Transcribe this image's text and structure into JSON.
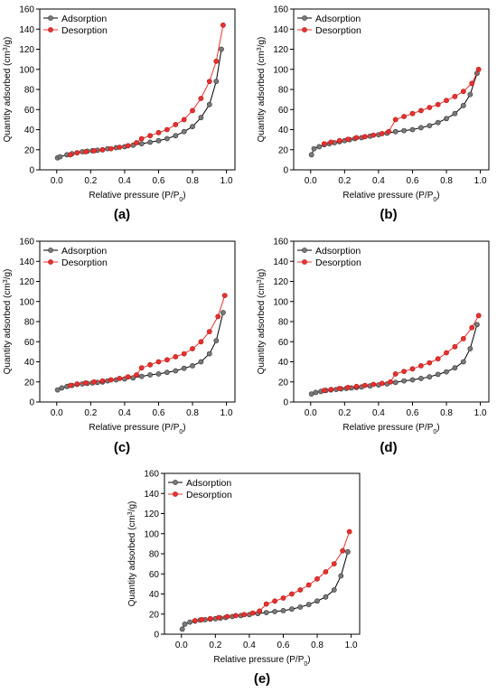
{
  "figure": {
    "panel_labels": [
      "(a)",
      "(b)",
      "(c)",
      "(d)",
      "(e)"
    ]
  },
  "chart_data": [
    {
      "type": "line",
      "panel": "(a)",
      "xlabel": "Relative pressure (P/P0)",
      "ylabel": "Quantity adsorbed (cm3/g)",
      "xlim": [
        -0.1,
        1.05
      ],
      "ylim": [
        0,
        160
      ],
      "xticks": [
        0.0,
        0.2,
        0.4,
        0.6,
        0.8,
        1.0
      ],
      "yticks": [
        0,
        20,
        40,
        60,
        80,
        100,
        120,
        140,
        160
      ],
      "grid": false,
      "legend": "top-left",
      "series": [
        {
          "name": "Adsorption",
          "color": "#000000",
          "marker_color": "#7a7a7a",
          "x": [
            0.005,
            0.02,
            0.06,
            0.09,
            0.12,
            0.15,
            0.18,
            0.21,
            0.24,
            0.27,
            0.3,
            0.35,
            0.4,
            0.45,
            0.5,
            0.55,
            0.6,
            0.65,
            0.7,
            0.75,
            0.8,
            0.85,
            0.9,
            0.94,
            0.97
          ],
          "y": [
            12,
            13,
            15,
            16,
            17,
            18,
            18.5,
            19,
            19.5,
            20,
            21,
            22,
            23,
            24.5,
            26,
            27.5,
            29,
            31,
            34,
            38,
            43,
            52,
            65,
            88,
            120
          ]
        },
        {
          "name": "Desorption",
          "color": "#e8312f",
          "marker_color": "#e8312f",
          "x": [
            0.98,
            0.94,
            0.9,
            0.85,
            0.8,
            0.75,
            0.7,
            0.65,
            0.6,
            0.55,
            0.5,
            0.47,
            0.42,
            0.37,
            0.32,
            0.27,
            0.22,
            0.17,
            0.12,
            0.08
          ],
          "y": [
            144,
            108,
            88,
            71,
            59,
            50,
            45,
            40,
            37,
            34,
            31,
            27,
            24,
            22.5,
            21,
            20,
            19,
            18,
            17,
            15
          ]
        }
      ]
    },
    {
      "type": "line",
      "panel": "(b)",
      "xlabel": "Relative pressure (P/P0)",
      "ylabel": "Quantity adsorbed (cm3/g)",
      "xlim": [
        -0.1,
        1.05
      ],
      "ylim": [
        0,
        160
      ],
      "xticks": [
        0.0,
        0.2,
        0.4,
        0.6,
        0.8,
        1.0
      ],
      "yticks": [
        0,
        20,
        40,
        60,
        80,
        100,
        120,
        140,
        160
      ],
      "grid": false,
      "legend": "top-left",
      "series": [
        {
          "name": "Adsorption",
          "color": "#000000",
          "marker_color": "#7a7a7a",
          "x": [
            0.005,
            0.02,
            0.05,
            0.08,
            0.11,
            0.14,
            0.17,
            0.2,
            0.23,
            0.26,
            0.3,
            0.35,
            0.4,
            0.45,
            0.5,
            0.55,
            0.6,
            0.65,
            0.7,
            0.75,
            0.8,
            0.85,
            0.9,
            0.94,
            0.98
          ],
          "y": [
            15,
            21,
            23,
            25,
            26,
            27,
            28,
            29,
            30,
            31,
            32,
            33.5,
            35,
            36.5,
            38,
            39,
            40,
            42,
            44,
            47,
            51,
            56,
            64,
            75,
            96
          ]
        },
        {
          "name": "Desorption",
          "color": "#e8312f",
          "marker_color": "#e8312f",
          "x": [
            0.99,
            0.95,
            0.9,
            0.85,
            0.8,
            0.75,
            0.7,
            0.65,
            0.6,
            0.55,
            0.5,
            0.46,
            0.42,
            0.37,
            0.32,
            0.27,
            0.22,
            0.17,
            0.12,
            0.08
          ],
          "y": [
            100,
            86,
            78,
            73,
            69,
            65,
            62,
            59,
            56,
            53,
            50,
            38,
            36,
            34.5,
            33,
            32,
            30.5,
            29,
            27.5,
            26
          ]
        }
      ]
    },
    {
      "type": "line",
      "panel": "(c)",
      "xlabel": "Relative pressure (P/P0)",
      "ylabel": "Quantity adsorbed (cm3/g)",
      "xlim": [
        -0.1,
        1.05
      ],
      "ylim": [
        0,
        160
      ],
      "xticks": [
        0.0,
        0.2,
        0.4,
        0.6,
        0.8,
        1.0
      ],
      "yticks": [
        0,
        20,
        40,
        60,
        80,
        100,
        120,
        140,
        160
      ],
      "grid": false,
      "legend": "top-left",
      "series": [
        {
          "name": "Adsorption",
          "color": "#000000",
          "marker_color": "#7a7a7a",
          "x": [
            0.005,
            0.03,
            0.06,
            0.09,
            0.12,
            0.15,
            0.18,
            0.21,
            0.24,
            0.27,
            0.3,
            0.35,
            0.4,
            0.45,
            0.5,
            0.55,
            0.6,
            0.65,
            0.7,
            0.75,
            0.8,
            0.85,
            0.9,
            0.94,
            0.98
          ],
          "y": [
            12,
            14,
            15.5,
            16.5,
            17.5,
            18,
            18.5,
            19,
            19.5,
            20,
            21,
            22,
            23,
            24,
            25.5,
            27,
            28,
            29.5,
            31,
            33.5,
            36,
            40,
            48,
            61,
            89
          ]
        },
        {
          "name": "Desorption",
          "color": "#e8312f",
          "marker_color": "#e8312f",
          "x": [
            0.99,
            0.95,
            0.9,
            0.85,
            0.8,
            0.75,
            0.7,
            0.65,
            0.6,
            0.55,
            0.5,
            0.47,
            0.42,
            0.37,
            0.32,
            0.27,
            0.22,
            0.17,
            0.12,
            0.08
          ],
          "y": [
            106,
            85,
            70,
            60,
            53,
            48,
            45,
            42,
            40,
            37,
            34,
            27,
            25,
            23.5,
            22,
            21,
            20,
            19,
            18,
            16.5
          ]
        }
      ]
    },
    {
      "type": "line",
      "panel": "(d)",
      "xlabel": "Relative pressure (P/P0)",
      "ylabel": "Quantity adsorbed (cm3/g)",
      "xlim": [
        -0.1,
        1.05
      ],
      "ylim": [
        0,
        160
      ],
      "xticks": [
        0.0,
        0.2,
        0.4,
        0.6,
        0.8,
        1.0
      ],
      "yticks": [
        0,
        20,
        40,
        60,
        80,
        100,
        120,
        140,
        160
      ],
      "grid": false,
      "legend": "top-left",
      "series": [
        {
          "name": "Adsorption",
          "color": "#000000",
          "marker_color": "#7a7a7a",
          "x": [
            0.005,
            0.03,
            0.06,
            0.09,
            0.12,
            0.15,
            0.18,
            0.21,
            0.24,
            0.27,
            0.3,
            0.35,
            0.4,
            0.45,
            0.5,
            0.55,
            0.6,
            0.65,
            0.7,
            0.75,
            0.8,
            0.85,
            0.9,
            0.94,
            0.98
          ],
          "y": [
            8,
            9.5,
            10.5,
            11.5,
            12,
            12.5,
            13,
            13.5,
            14,
            14.5,
            15,
            16,
            17,
            18,
            19.5,
            21,
            22,
            23.5,
            25,
            27.5,
            30,
            34,
            40,
            53,
            77
          ]
        },
        {
          "name": "Desorption",
          "color": "#e8312f",
          "marker_color": "#e8312f",
          "x": [
            0.99,
            0.95,
            0.9,
            0.85,
            0.8,
            0.75,
            0.7,
            0.65,
            0.6,
            0.55,
            0.5,
            0.47,
            0.42,
            0.37,
            0.32,
            0.27,
            0.22,
            0.17,
            0.12,
            0.08
          ],
          "y": [
            86,
            74,
            63,
            55,
            49,
            43,
            39,
            36,
            33,
            30.5,
            28,
            20,
            18.5,
            17.5,
            16.5,
            15.5,
            14.5,
            13.5,
            12.5,
            11.5
          ]
        }
      ]
    },
    {
      "type": "line",
      "panel": "(e)",
      "xlabel": "Relative pressure (P/P0)",
      "ylabel": "Quantity adsorbed (cm3/g)",
      "xlim": [
        -0.1,
        1.05
      ],
      "ylim": [
        0,
        160
      ],
      "xticks": [
        0.0,
        0.2,
        0.4,
        0.6,
        0.8,
        1.0
      ],
      "yticks": [
        0,
        20,
        40,
        60,
        80,
        100,
        120,
        140,
        160
      ],
      "grid": false,
      "legend": "top-left",
      "series": [
        {
          "name": "Adsorption",
          "color": "#000000",
          "marker_color": "#7a7a7a",
          "x": [
            0.005,
            0.02,
            0.05,
            0.08,
            0.11,
            0.14,
            0.17,
            0.2,
            0.23,
            0.26,
            0.3,
            0.35,
            0.4,
            0.45,
            0.5,
            0.55,
            0.6,
            0.65,
            0.7,
            0.75,
            0.8,
            0.85,
            0.9,
            0.94,
            0.98
          ],
          "y": [
            5,
            10,
            12,
            13,
            14,
            14.5,
            15,
            15.5,
            16,
            16.5,
            17.5,
            18.5,
            19.5,
            20.5,
            21.5,
            22.5,
            23.5,
            25,
            27,
            29.5,
            33,
            37,
            44,
            58,
            82
          ]
        },
        {
          "name": "Desorption",
          "color": "#e8312f",
          "marker_color": "#e8312f",
          "x": [
            0.99,
            0.95,
            0.9,
            0.85,
            0.8,
            0.75,
            0.7,
            0.65,
            0.6,
            0.55,
            0.5,
            0.46,
            0.42,
            0.37,
            0.32,
            0.27,
            0.22,
            0.17,
            0.12,
            0.08
          ],
          "y": [
            102,
            83,
            70,
            62,
            55,
            49,
            44,
            40,
            36,
            33,
            30,
            23,
            21,
            19.5,
            18.5,
            17.5,
            16.5,
            15.5,
            14.5,
            13.5
          ]
        }
      ]
    }
  ]
}
